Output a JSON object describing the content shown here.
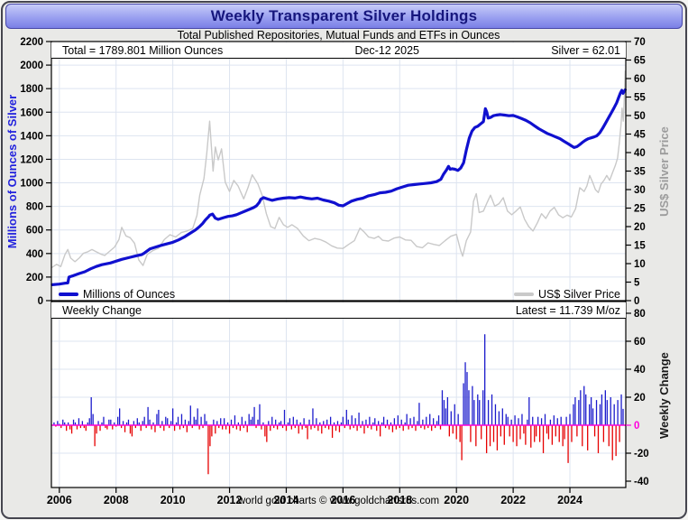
{
  "window": {
    "title": "Weekly Transparent Silver Holdings",
    "subtitle": "Total Published Repositories, Mutual Funds and ETFs in Ounces",
    "footer": "world gold charts © www.goldchartsrus.com"
  },
  "top_panel": {
    "header": {
      "total": "Total = 1789.801 Million Ounces",
      "date": "Dec-12  2025",
      "silver": "Silver = 62.01"
    },
    "legend": [
      {
        "label": "Millions of Ounces",
        "color": "#1010cf"
      },
      {
        "label": "US$ Silver Price",
        "color": "#c9c9c9"
      }
    ],
    "left_axis_title": "Millions of Ounces of Silver",
    "right_axis_title": "US$ Silver Price"
  },
  "bottom_panel": {
    "header": {
      "title": "Weekly Change",
      "latest": "Latest = 11.739 M/oz"
    },
    "right_axis_title": "Weekly Change"
  },
  "chart_data": {
    "type": "mixed",
    "grid_color": "#dde4f0",
    "x_axis_tick_years": [
      2006,
      2008,
      2010,
      2012,
      2014,
      2016,
      2018,
      2020,
      2022,
      2024
    ],
    "panels": [
      {
        "type": "line",
        "x_range": [
          2005.72,
          2025.97
        ],
        "left_axis": {
          "title": "Millions of Ounces of Silver",
          "range": [
            0,
            2200
          ],
          "tick_step": 200
        },
        "right_axis": {
          "title": "US$ Silver Price",
          "range": [
            0,
            70
          ],
          "tick_step": 5
        },
        "annotations": {
          "total": "Total = 1789.801 Million Ounces",
          "date": "Dec-12  2025",
          "silver": "Silver = 62.01"
        },
        "series": [
          {
            "name": "US$ Silver Price",
            "axis": "right",
            "color": "#c9c9c9",
            "width": 1.4,
            "x": [
              2005.75,
              2005.9,
              2006.05,
              2006.2,
              2006.3,
              2006.4,
              2006.55,
              2006.7,
              2006.85,
              2007.0,
              2007.15,
              2007.3,
              2007.45,
              2007.6,
              2007.8,
              2007.95,
              2008.1,
              2008.2,
              2008.35,
              2008.5,
              2008.65,
              2008.8,
              2008.95,
              2009.1,
              2009.3,
              2009.5,
              2009.7,
              2009.9,
              2010.1,
              2010.3,
              2010.5,
              2010.7,
              2010.85,
              2010.95,
              2011.1,
              2011.2,
              2011.3,
              2011.42,
              2011.5,
              2011.6,
              2011.72,
              2011.85,
              2012.0,
              2012.15,
              2012.3,
              2012.5,
              2012.65,
              2012.8,
              2013.0,
              2013.15,
              2013.3,
              2013.45,
              2013.6,
              2013.75,
              2013.9,
              2014.05,
              2014.2,
              2014.4,
              2014.6,
              2014.8,
              2015.0,
              2015.2,
              2015.4,
              2015.6,
              2015.8,
              2016.0,
              2016.2,
              2016.4,
              2016.6,
              2016.75,
              2016.9,
              2017.1,
              2017.25,
              2017.4,
              2017.6,
              2017.8,
              2018.0,
              2018.2,
              2018.4,
              2018.6,
              2018.8,
              2019.0,
              2019.2,
              2019.4,
              2019.6,
              2019.8,
              2020.0,
              2020.15,
              2020.22,
              2020.35,
              2020.5,
              2020.6,
              2020.7,
              2020.8,
              2020.95,
              2021.08,
              2021.2,
              2021.35,
              2021.5,
              2021.65,
              2021.8,
              2021.95,
              2022.1,
              2022.25,
              2022.4,
              2022.55,
              2022.7,
              2022.85,
              2023.0,
              2023.15,
              2023.3,
              2023.45,
              2023.6,
              2023.75,
              2023.9,
              2024.05,
              2024.2,
              2024.35,
              2024.5,
              2024.6,
              2024.7,
              2024.8,
              2024.9,
              2025.0,
              2025.1,
              2025.2,
              2025.3,
              2025.4,
              2025.5,
              2025.6,
              2025.68,
              2025.74,
              2025.8,
              2025.84,
              2025.88,
              2025.92,
              2025.95
            ],
            "y": [
              9,
              9.8,
              9.2,
              12.5,
              13.8,
              11.5,
              10.5,
              11.5,
              12.8,
              13.2,
              13.8,
              13.2,
              12.6,
              12.2,
              13.5,
              14.5,
              16.5,
              19.8,
              17.5,
              17,
              15.5,
              11,
              9.5,
              12.5,
              13.5,
              14.2,
              16.5,
              17.8,
              17.2,
              18.4,
              18.8,
              19.5,
              23,
              28.5,
              33,
              40,
              48.5,
              35,
              41.5,
              38,
              41,
              32,
              29.5,
              32.5,
              31,
              27.5,
              30.5,
              34,
              31.5,
              28.5,
              23.5,
              20,
              19.5,
              22.5,
              20.5,
              19.8,
              20.5,
              19.5,
              17.5,
              16.2,
              16.8,
              16.5,
              15.8,
              14.8,
              14.2,
              14.1,
              15.2,
              16.2,
              19.6,
              18.5,
              17.2,
              16.8,
              17.4,
              16.3,
              16.1,
              16.9,
              17.2,
              16.4,
              16.3,
              14.6,
              14.3,
              15.6,
              15.2,
              14.9,
              16.2,
              17.4,
              17.9,
              13.5,
              12,
              16.2,
              18.5,
              26.8,
              28.9,
              23.8,
              24.2,
              26.5,
              28.5,
              25.5,
              26.2,
              27.8,
              24.2,
              23.2,
              24.2,
              25.3,
              22,
              20,
              18.8,
              21,
              23.5,
              22.2,
              24.2,
              25.2,
              23.2,
              22.4,
              23.1,
              22.6,
              24.8,
              30.5,
              29.5,
              31,
              33.8,
              32,
              30,
              29.2,
              31.5,
              32.5,
              33.8,
              32.5,
              34.5,
              36.5,
              38.5,
              42.5,
              47.5,
              52,
              48.5,
              55,
              62
            ]
          },
          {
            "name": "Millions of Ounces",
            "axis": "left",
            "color": "#1010cf",
            "width": 3.2,
            "x": [
              2005.75,
              2006.0,
              2006.2,
              2006.3,
              2006.34,
              2006.5,
              2006.7,
              2006.9,
              2007.1,
              2007.3,
              2007.5,
              2007.8,
              2008.0,
              2008.2,
              2008.5,
              2008.7,
              2008.9,
              2009.0,
              2009.2,
              2009.4,
              2009.6,
              2009.8,
              2010.0,
              2010.2,
              2010.4,
              2010.6,
              2010.8,
              2010.95,
              2011.05,
              2011.15,
              2011.25,
              2011.3,
              2011.4,
              2011.5,
              2011.6,
              2011.8,
              2011.95,
              2012.1,
              2012.25,
              2012.4,
              2012.55,
              2012.7,
              2012.85,
              2012.95,
              2013.05,
              2013.1,
              2013.2,
              2013.35,
              2013.5,
              2013.7,
              2013.9,
              2014.1,
              2014.3,
              2014.5,
              2014.7,
              2014.9,
              2015.1,
              2015.3,
              2015.5,
              2015.7,
              2015.85,
              2016.0,
              2016.15,
              2016.3,
              2016.5,
              2016.7,
              2016.9,
              2017.1,
              2017.3,
              2017.5,
              2017.7,
              2017.9,
              2018.1,
              2018.3,
              2018.5,
              2018.7,
              2018.9,
              2019.1,
              2019.3,
              2019.45,
              2019.55,
              2019.65,
              2019.72,
              2019.78,
              2019.85,
              2019.95,
              2020.05,
              2020.15,
              2020.25,
              2020.35,
              2020.45,
              2020.55,
              2020.65,
              2020.75,
              2020.85,
              2020.95,
              2021.02,
              2021.07,
              2021.12,
              2021.2,
              2021.3,
              2021.4,
              2021.55,
              2021.7,
              2021.85,
              2022.0,
              2022.15,
              2022.3,
              2022.45,
              2022.6,
              2022.75,
              2022.9,
              2023.05,
              2023.2,
              2023.35,
              2023.5,
              2023.65,
              2023.8,
              2023.95,
              2024.05,
              2024.15,
              2024.25,
              2024.35,
              2024.45,
              2024.55,
              2024.65,
              2024.75,
              2024.85,
              2024.95,
              2025.05,
              2025.15,
              2025.25,
              2025.35,
              2025.45,
              2025.55,
              2025.65,
              2025.72,
              2025.78,
              2025.83,
              2025.87,
              2025.91,
              2025.95
            ],
            "y": [
              135,
              140,
              148,
              150,
              200,
              212,
              230,
              245,
              270,
              290,
              305,
              320,
              335,
              350,
              368,
              380,
              390,
              405,
              440,
              455,
              470,
              482,
              495,
              515,
              540,
              570,
              600,
              630,
              655,
              685,
              710,
              725,
              735,
              700,
              690,
              705,
              715,
              720,
              730,
              745,
              760,
              775,
              790,
              805,
              835,
              860,
              875,
              862,
              852,
              863,
              870,
              875,
              871,
              880,
              870,
              864,
              870,
              855,
              845,
              830,
              810,
              805,
              825,
              845,
              860,
              870,
              890,
              900,
              915,
              920,
              930,
              950,
              965,
              980,
              985,
              990,
              995,
              1000,
              1010,
              1030,
              1075,
              1110,
              1140,
              1115,
              1120,
              1115,
              1105,
              1125,
              1170,
              1280,
              1380,
              1440,
              1470,
              1480,
              1500,
              1520,
              1630,
              1600,
              1550,
              1555,
              1570,
              1575,
              1580,
              1575,
              1570,
              1572,
              1560,
              1545,
              1530,
              1510,
              1485,
              1460,
              1440,
              1420,
              1405,
              1390,
              1375,
              1352,
              1330,
              1315,
              1300,
              1308,
              1325,
              1345,
              1362,
              1375,
              1382,
              1390,
              1400,
              1425,
              1462,
              1505,
              1548,
              1590,
              1634,
              1680,
              1725,
              1762,
              1785,
              1760,
              1775,
              1790
            ]
          }
        ]
      },
      {
        "type": "bar",
        "name": "Weekly Change",
        "latest": 11.739,
        "pos_color": "#1c1ccc",
        "neg_color": "#e60000",
        "right_axis": {
          "title": "Weekly Change",
          "range": [
            -40,
            80
          ],
          "tick_step": 20,
          "zero_color": "#ff00dd"
        },
        "start": 2005.8125,
        "step": 0.0625,
        "values": [
          2,
          -1,
          3,
          1,
          -2,
          4,
          2,
          -4,
          2,
          -3,
          -6,
          4,
          2,
          -3,
          5,
          -2,
          3,
          -2,
          -4,
          2,
          5,
          20,
          8,
          -15,
          -6,
          3,
          -4,
          2,
          6,
          -2,
          -3,
          4,
          4,
          -3,
          2,
          -1,
          6,
          12,
          -2,
          3,
          -5,
          2,
          4,
          -6,
          -8,
          3,
          -2,
          5,
          2,
          -4,
          3,
          6,
          -2,
          13,
          4,
          -3,
          2,
          -5,
          8,
          11,
          -2,
          3,
          -4,
          6,
          5,
          -2,
          3,
          12,
          -4,
          2,
          6,
          -3,
          8,
          -2,
          4,
          -5,
          3,
          14,
          -2,
          6,
          4,
          12,
          -3,
          6,
          -2,
          8,
          3,
          -35,
          -15,
          -8,
          4,
          -6,
          3,
          -2,
          5,
          -3,
          5,
          -3,
          2,
          -6,
          4,
          -2,
          7,
          -3,
          2,
          -4,
          6,
          -2,
          3,
          -5,
          8,
          4,
          6,
          13,
          -2,
          4,
          15,
          -3,
          2,
          -8,
          -12,
          3,
          -4,
          6,
          -2,
          4,
          -3,
          2,
          3,
          -2,
          11,
          -4,
          2,
          5,
          -3,
          6,
          -2,
          4,
          -6,
          2,
          -3,
          5,
          -2,
          -10,
          4,
          -3,
          12,
          -2,
          5,
          -4,
          2,
          -6,
          3,
          -2,
          4,
          -3,
          6,
          -9,
          2,
          -4,
          3,
          -5,
          2,
          6,
          -2,
          11,
          4,
          -3,
          7,
          -2,
          5,
          -4,
          9,
          -2,
          3,
          -6,
          4,
          -2,
          6,
          -3,
          2,
          5,
          -4,
          3,
          -8,
          2,
          6,
          -2,
          4,
          -3,
          2,
          -5,
          5,
          -3,
          7,
          -2,
          4,
          -4,
          2,
          8,
          -3,
          5,
          -2,
          6,
          -4,
          3,
          16,
          -2,
          4,
          -3,
          6,
          -2,
          8,
          -4,
          5,
          -2,
          3,
          7,
          -3,
          25,
          18,
          12,
          20,
          -8,
          10,
          -6,
          15,
          -10,
          8,
          -12,
          -25,
          30,
          45,
          38,
          25,
          -12,
          28,
          18,
          -15,
          22,
          18,
          -10,
          25,
          65,
          -20,
          18,
          -15,
          22,
          -12,
          15,
          -18,
          10,
          -8,
          12,
          -14,
          8,
          6,
          -8,
          4,
          -12,
          7,
          -15,
          5,
          -10,
          8,
          -6,
          -14,
          4,
          20,
          -16,
          6,
          -12,
          -8,
          6,
          -12,
          5,
          -20,
          8,
          -6,
          -10,
          4,
          -14,
          7,
          -8,
          5,
          -12,
          6,
          -15,
          -10,
          6,
          -27,
          8,
          -12,
          15,
          20,
          -8,
          18,
          25,
          -15,
          28,
          22,
          -18,
          15,
          20,
          12,
          -8,
          18,
          -20,
          15,
          22,
          -12,
          25,
          18,
          -15,
          20,
          -25,
          15,
          -22,
          18,
          -12,
          22,
          11.7
        ]
      }
    ]
  }
}
